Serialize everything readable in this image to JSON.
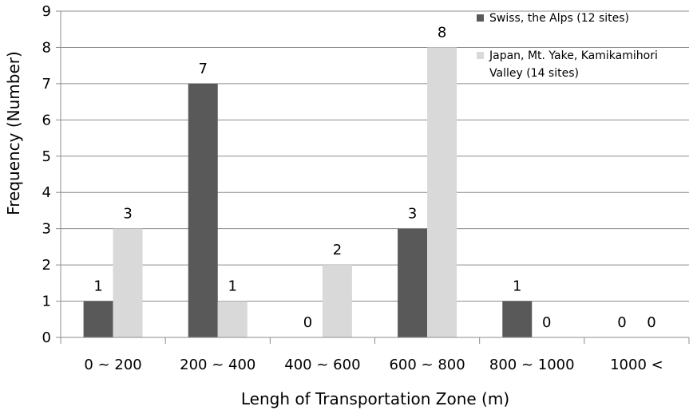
{
  "chart_data": {
    "type": "bar",
    "title": "",
    "xlabel": "Lengh of Transportation Zone (m)",
    "ylabel": "Frequency (Number)",
    "categories": [
      "0 ~ 200",
      "200 ~ 400",
      "400 ~ 600",
      "600 ~ 800",
      "800 ~ 1000",
      "1000 <"
    ],
    "ylim": [
      0,
      9
    ],
    "yticks": [
      "0",
      "1",
      "2",
      "3",
      "4",
      "5",
      "6",
      "7",
      "8",
      "9"
    ],
    "grid": true,
    "legend_position": "top-right",
    "series": [
      {
        "name": "Swiss, the Alps (12 sites)",
        "legend_lines": [
          "Swiss, the Alps (12 sites)"
        ],
        "color": "#595959",
        "values": [
          1,
          7,
          0,
          3,
          1,
          0
        ]
      },
      {
        "name": "Japan, Mt. Yake, Kamikamihori Valley (14 sites)",
        "legend_lines": [
          "Japan, Mt. Yake, Kamikamihori",
          "Valley (14 sites)"
        ],
        "color": "#d9d9d9",
        "values": [
          3,
          1,
          2,
          8,
          0,
          0
        ]
      }
    ]
  }
}
